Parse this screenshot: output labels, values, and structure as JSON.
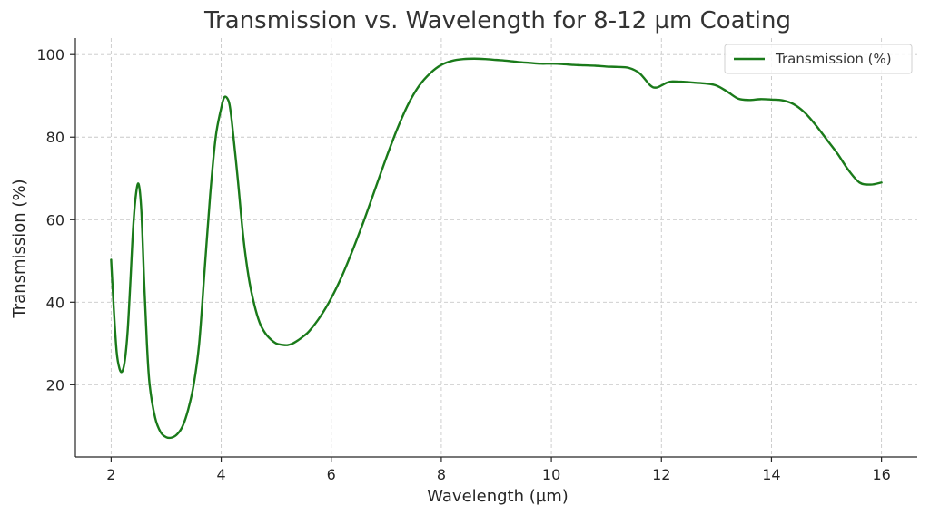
{
  "chart_data": {
    "type": "line",
    "title": "Transmission vs. Wavelength for 8-12 µm Coating",
    "xlabel": "Wavelength (µm)",
    "ylabel": "Transmission (%)",
    "xlim": [
      1.35,
      16.65
    ],
    "ylim": [
      2.5,
      104
    ],
    "x_ticks": [
      2,
      4,
      6,
      8,
      10,
      12,
      14,
      16
    ],
    "x_tick_labels": [
      "2",
      "4",
      "6",
      "8",
      "10",
      "12",
      "14",
      "16"
    ],
    "y_ticks": [
      20,
      40,
      60,
      80,
      100
    ],
    "y_tick_labels": [
      "20",
      "40",
      "60",
      "80",
      "100"
    ],
    "grid": true,
    "legend_position": "top-right",
    "series": [
      {
        "name": "Transmission (%)",
        "color": "#1a7a1a",
        "x": [
          2.0,
          2.05,
          2.1,
          2.15,
          2.2,
          2.25,
          2.3,
          2.35,
          2.4,
          2.45,
          2.5,
          2.55,
          2.6,
          2.65,
          2.7,
          2.8,
          2.9,
          3.0,
          3.1,
          3.2,
          3.3,
          3.4,
          3.5,
          3.6,
          3.7,
          3.8,
          3.9,
          4.0,
          4.05,
          4.1,
          4.15,
          4.2,
          4.3,
          4.4,
          4.5,
          4.6,
          4.7,
          4.8,
          4.9,
          5.0,
          5.1,
          5.2,
          5.3,
          5.4,
          5.5,
          5.6,
          5.8,
          6.0,
          6.2,
          6.4,
          6.6,
          6.8,
          7.0,
          7.2,
          7.4,
          7.6,
          7.8,
          8.0,
          8.2,
          8.4,
          8.6,
          8.8,
          9.0,
          9.2,
          9.4,
          9.6,
          9.8,
          10.0,
          10.2,
          10.4,
          10.6,
          10.8,
          11.0,
          11.2,
          11.4,
          11.6,
          11.8,
          11.9,
          12.0,
          12.1,
          12.2,
          12.4,
          12.6,
          12.8,
          13.0,
          13.2,
          13.4,
          13.6,
          13.8,
          14.0,
          14.2,
          14.4,
          14.6,
          14.8,
          15.0,
          15.2,
          15.4,
          15.6,
          15.8,
          16.0
        ],
        "values": [
          50.3,
          38.0,
          28.0,
          24.0,
          23.2,
          26.0,
          33.0,
          45.0,
          58.0,
          66.0,
          68.6,
          62.0,
          45.0,
          30.0,
          20.0,
          12.0,
          8.5,
          7.3,
          7.2,
          8.0,
          10.0,
          14.0,
          20.0,
          30.0,
          48.0,
          66.0,
          80.0,
          87.0,
          89.5,
          89.6,
          88.0,
          83.0,
          70.0,
          56.0,
          46.0,
          39.5,
          35.0,
          32.5,
          31.0,
          30.0,
          29.7,
          29.6,
          30.0,
          30.8,
          31.8,
          33.0,
          36.5,
          41.0,
          46.5,
          53.0,
          60.0,
          67.5,
          75.0,
          82.0,
          88.0,
          92.5,
          95.5,
          97.5,
          98.5,
          98.9,
          99.0,
          98.9,
          98.7,
          98.5,
          98.2,
          98.0,
          97.8,
          97.8,
          97.7,
          97.5,
          97.4,
          97.3,
          97.1,
          97.0,
          96.8,
          95.5,
          92.5,
          92.0,
          92.5,
          93.2,
          93.5,
          93.4,
          93.2,
          93.0,
          92.5,
          91.0,
          89.3,
          89.0,
          89.2,
          89.1,
          88.9,
          88.0,
          86.0,
          83.0,
          79.5,
          76.0,
          72.0,
          69.0,
          68.5,
          69.0
        ]
      }
    ]
  }
}
